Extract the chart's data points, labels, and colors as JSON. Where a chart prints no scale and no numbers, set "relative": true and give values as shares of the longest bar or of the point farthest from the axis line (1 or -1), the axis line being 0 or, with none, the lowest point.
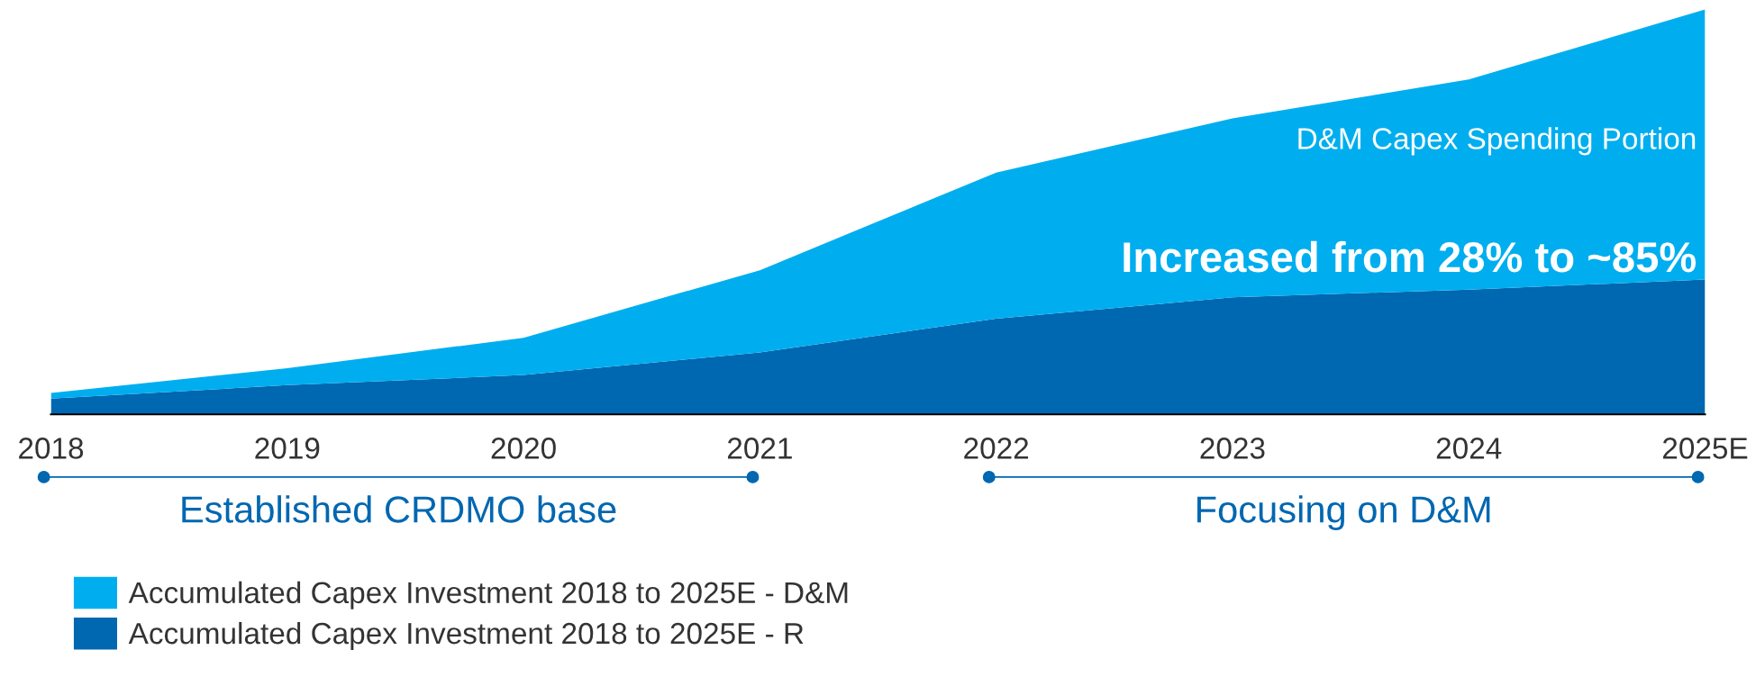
{
  "chart_data": {
    "type": "area",
    "stacked": true,
    "relative": true,
    "tick_labels": "x",
    "grid": false,
    "legend": "bottom left",
    "categories": [
      "2018",
      "2019",
      "2020",
      "2021",
      "2022",
      "2023",
      "2024",
      "2025E"
    ],
    "series": [
      {
        "name": "Accumulated Capex Investment 2018 to 2025E - R",
        "color": "#0067b1",
        "values": [
          0.039,
          0.072,
          0.097,
          0.153,
          0.236,
          0.289,
          0.308,
          0.333
        ]
      },
      {
        "name": "Accumulated Capex Investment 2018 to 2025E - D&M",
        "color": "#00aeef",
        "values": [
          0.014,
          0.042,
          0.092,
          0.203,
          0.361,
          0.442,
          0.519,
          0.667
        ]
      }
    ],
    "annotations": [
      "D&M Capex Spending Portion",
      "Increased from 28% to ~85%",
      "Established CRDMO base",
      "Focusing on D&M"
    ]
  }
}
